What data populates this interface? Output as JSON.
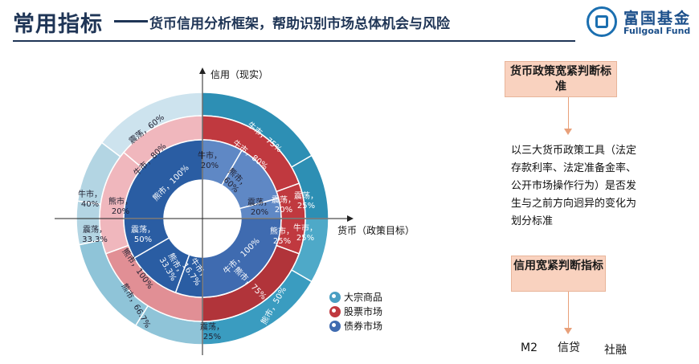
{
  "header": {
    "title": "常用指标",
    "subtitle": "货币信用分析框架，帮助识别市场总体机会与风险",
    "logo_cn": "富国基金",
    "logo_en": "Fullgoal Fund"
  },
  "axes": {
    "vertical": "信用（现实）",
    "horizontal": "货币（政策目标）"
  },
  "legend": [
    "大宗商品",
    "股票市场",
    "债券市场"
  ],
  "rings": {
    "outer": [
      {
        "label": "震荡，60%"
      },
      {
        "label": "牛市，75%"
      },
      {
        "label": "震荡，25%"
      },
      {
        "label": "牛市，25%"
      },
      {
        "label": "熊市，50%"
      },
      {
        "label": "震荡，25%"
      },
      {
        "label": "熊市，66.7%"
      },
      {
        "label": "震荡，33.3%"
      },
      {
        "label": "牛市，40%"
      }
    ],
    "middle": [
      {
        "label": "牛市，80%"
      },
      {
        "label": "熊市，20%"
      },
      {
        "label": "牛市，80%"
      },
      {
        "label": "震荡，20%"
      },
      {
        "label": "熊市，25%"
      },
      {
        "label": "熊市，75%"
      },
      {
        "label": "熊市，100%"
      }
    ],
    "inner": [
      {
        "label": "熊市，100%"
      },
      {
        "label": "牛市，20%"
      },
      {
        "label": "熊市，60%"
      },
      {
        "label": "震荡，20%"
      },
      {
        "label": "牛市，100%"
      },
      {
        "label": "牛市，16.7%"
      },
      {
        "label": "熊市，33.3%"
      },
      {
        "label": "震荡，50%"
      }
    ]
  },
  "right": {
    "box1": "货币政策宽紧判断标准",
    "description": "以三大货币政策工具（法定存款利率、法定准备金率、公开市场操作行为）是否发生与之前方向迥异的变化为划分标准",
    "box2": "信用宽紧判断指标",
    "metrics": [
      "M2",
      "信贷",
      "社融"
    ]
  },
  "colors": {
    "commodity": "#4a9fc3",
    "stock": "#c0393f",
    "bond": "#3f6bb0",
    "box": "#f9d2bf",
    "title": "#1f3556"
  }
}
